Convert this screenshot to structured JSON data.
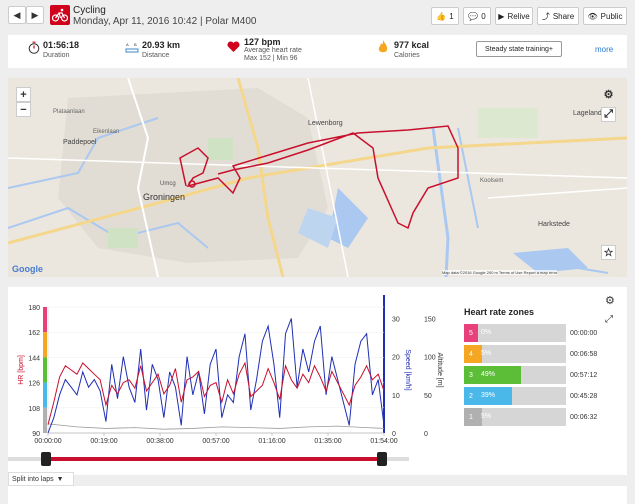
{
  "nav": {
    "prev": "◀",
    "next": "▶"
  },
  "session": {
    "sport": "Cycling",
    "info": "Monday, Apr 11, 2016 10:42 | Polar M400"
  },
  "actions": {
    "likes": "1",
    "comments": "0",
    "relive": "Relive",
    "share": "Share",
    "visibility": "Public"
  },
  "summary": {
    "duration_value": "01:56:18",
    "duration_label": "Duration",
    "distance_value": "20.93 km",
    "distance_label": "Distance",
    "hr_value": "127 bpm",
    "hr_label": "Average heart rate",
    "hr_range": "Max 152  |  Min 96",
    "calories_value": "977 kcal",
    "calories_label": "Calories",
    "benefit_button": "Steady state training+",
    "more": "more"
  },
  "map": {
    "zoom_in": "+",
    "zoom_out": "−",
    "labels": {
      "groningen": "Groningen",
      "paddepoel": "Paddepoel",
      "lewenborg": "Lewenborg",
      "lageland": "Lageland",
      "harkstede": "Harkstede",
      "umcg": "Umcg",
      "plataanlaan": "Plataanlaan",
      "eikenlaan": "Eikenlaan",
      "koolsem": "Koolsem"
    },
    "google": "Google",
    "attribution": "Map data ©2016 Google   200 m        Terms of Use   Report a map error"
  },
  "chart_data": {
    "type": "line",
    "x_ticks": [
      "00:00:00",
      "00:19:00",
      "00:38:00",
      "00:57:00",
      "01:16:00",
      "01:35:00",
      "01:54:00"
    ],
    "y_left_ticks": [
      180,
      162,
      144,
      126,
      108,
      90
    ],
    "y_right_speed_ticks": [
      30,
      20,
      10,
      0
    ],
    "y_right_alt_ticks": [
      150,
      100,
      50,
      0
    ],
    "y_left_label": "HR [bpm]",
    "y_right_speed_label": "Speed [km/h]",
    "y_right_alt_label": "Altitude [m]",
    "ylim_hr": [
      90,
      180
    ],
    "ylim_speed": [
      0,
      33
    ],
    "ylim_alt": [
      0,
      165
    ],
    "xlim_min": [
      0,
      116
    ],
    "series": [
      {
        "name": "HR [bpm]",
        "color": "#c8102e",
        "x": [
          0,
          2,
          4,
          6,
          8,
          10,
          12,
          14,
          16,
          18,
          20,
          22,
          24,
          26,
          28,
          30,
          32,
          34,
          36,
          38,
          40,
          42,
          44,
          46,
          48,
          50,
          52,
          54,
          56,
          58,
          60,
          62,
          64,
          66,
          68,
          70,
          72,
          74,
          76,
          78,
          80,
          82,
          84,
          86,
          88,
          90,
          92,
          94,
          96,
          98,
          100,
          102,
          104,
          106,
          108,
          110,
          112,
          114,
          116
        ],
        "values": [
          96,
          112,
          130,
          138,
          135,
          132,
          140,
          136,
          132,
          128,
          110,
          124,
          118,
          126,
          128,
          122,
          138,
          120,
          126,
          132,
          118,
          124,
          136,
          112,
          128,
          130,
          134,
          116,
          124,
          126,
          112,
          128,
          118,
          132,
          140,
          116,
          120,
          124,
          136,
          126,
          114,
          138,
          128,
          122,
          132,
          126,
          138,
          130,
          120,
          134,
          126,
          118,
          110,
          124,
          130,
          138,
          128,
          132,
          120
        ]
      },
      {
        "name": "Speed [km/h]",
        "color": "#1f2fb5",
        "x": [
          0,
          2,
          4,
          6,
          8,
          10,
          12,
          14,
          16,
          18,
          20,
          22,
          24,
          26,
          28,
          30,
          32,
          34,
          36,
          38,
          40,
          42,
          44,
          46,
          48,
          50,
          52,
          54,
          56,
          58,
          60,
          62,
          64,
          66,
          68,
          70,
          72,
          74,
          76,
          78,
          80,
          82,
          84,
          86,
          88,
          90,
          92,
          94,
          96,
          98,
          100,
          102,
          104,
          106,
          108,
          110,
          112,
          114,
          116
        ],
        "values": [
          0,
          4,
          10,
          14,
          12,
          10,
          16,
          12,
          14,
          11,
          3,
          18,
          9,
          20,
          12,
          8,
          22,
          6,
          18,
          14,
          4,
          16,
          12,
          2,
          20,
          10,
          16,
          5,
          18,
          22,
          4,
          10,
          8,
          20,
          26,
          6,
          14,
          24,
          28,
          18,
          4,
          26,
          30,
          12,
          22,
          16,
          24,
          28,
          10,
          20,
          14,
          8,
          2,
          18,
          24,
          26,
          10,
          14,
          2
        ]
      },
      {
        "name": "Altitude [m]",
        "color": "#999999",
        "x": [
          0,
          10,
          20,
          30,
          40,
          50,
          60,
          70,
          80,
          90,
          100,
          110,
          116
        ],
        "values": [
          12,
          8,
          6,
          7,
          5,
          6,
          8,
          7,
          6,
          8,
          9,
          7,
          6
        ]
      }
    ]
  },
  "zones": {
    "title": "Heart rate zones",
    "rows": [
      {
        "zone": "5",
        "pct": "0%",
        "fill": 0,
        "time": "00:00:00",
        "color": "#e8407a"
      },
      {
        "zone": "4",
        "pct": "5%",
        "fill": 5,
        "time": "00:06:58",
        "color": "#f5a623"
      },
      {
        "zone": "3",
        "pct": "49%",
        "fill": 49,
        "time": "00:57:12",
        "color": "#5cbd37"
      },
      {
        "zone": "2",
        "pct": "39%",
        "fill": 39,
        "time": "00:45:28",
        "color": "#4ab8e8"
      },
      {
        "zone": "1",
        "pct": "5%",
        "fill": 5,
        "time": "00:06:32",
        "color": "#b0b0b0"
      }
    ]
  },
  "laps": {
    "split": "Split into laps"
  }
}
